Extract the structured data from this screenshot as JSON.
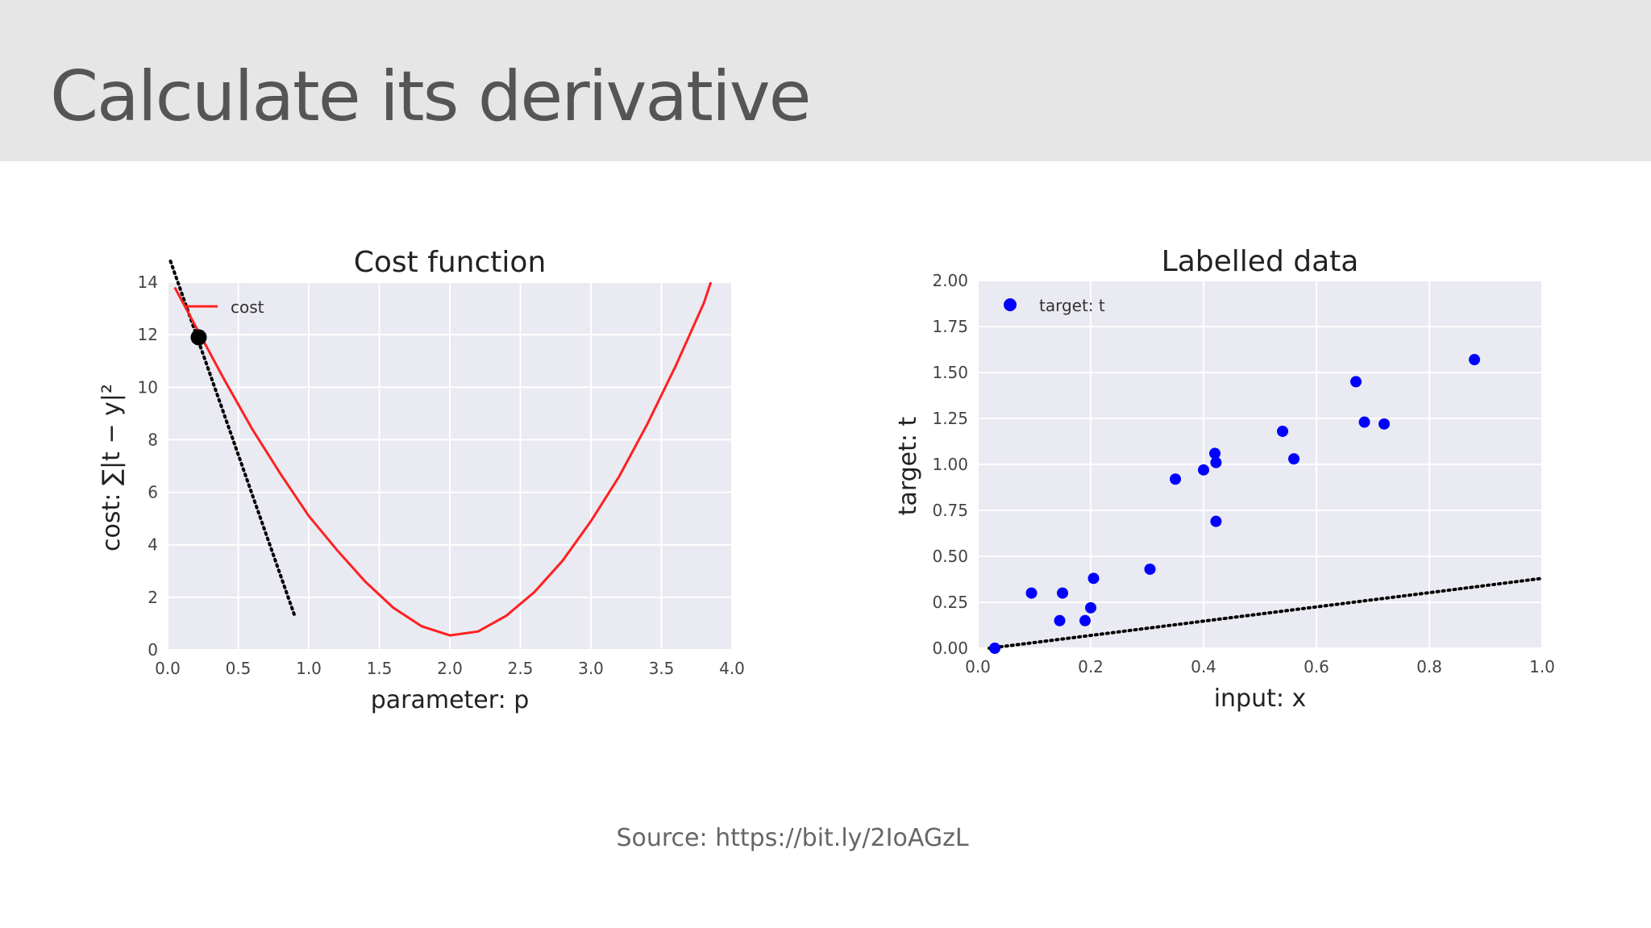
{
  "slide": {
    "title": "Calculate its derivative",
    "source": "Source: https://bit.ly/2IoAGzL"
  },
  "colors": {
    "header_bg": "#e6e6e6",
    "plot_bg": "#eaeaf2",
    "cost_line": "#ff2020",
    "points": "#0000ff",
    "tangent": "#000000"
  },
  "chart_data": [
    {
      "type": "line",
      "title": "Cost function",
      "xlabel": "parameter: p",
      "ylabel": "cost: ∑|t − y|²",
      "xlim": [
        0,
        4
      ],
      "ylim": [
        0,
        14
      ],
      "xticks": [
        "0.0",
        "0.5",
        "1.0",
        "1.5",
        "2.0",
        "2.5",
        "3.0",
        "3.5",
        "4.0"
      ],
      "yticks": [
        "0",
        "2",
        "4",
        "6",
        "8",
        "10",
        "12",
        "14"
      ],
      "grid": true,
      "legend": {
        "position": "top-left",
        "entries": [
          "cost"
        ]
      },
      "series": [
        {
          "name": "cost",
          "style": "solid red line",
          "x": [
            0.05,
            0.2,
            0.4,
            0.6,
            0.8,
            1.0,
            1.2,
            1.4,
            1.6,
            1.8,
            2.0,
            2.2,
            2.4,
            2.6,
            2.8,
            3.0,
            3.2,
            3.4,
            3.6,
            3.8,
            3.85
          ],
          "y": [
            13.8,
            12.3,
            10.3,
            8.4,
            6.7,
            5.1,
            3.8,
            2.6,
            1.6,
            0.9,
            0.55,
            0.7,
            1.3,
            2.2,
            3.4,
            4.9,
            6.6,
            8.6,
            10.8,
            13.2,
            14.0
          ]
        }
      ],
      "marker_point": {
        "x": 0.22,
        "y": 11.9
      },
      "tangent_line": {
        "style": "dotted black",
        "x": [
          0.02,
          0.9
        ],
        "y": [
          14.8,
          1.3
        ]
      }
    },
    {
      "type": "scatter",
      "title": "Labelled data",
      "xlabel": "input: x",
      "ylabel": "target: t",
      "xlim": [
        0,
        1
      ],
      "ylim": [
        0,
        2
      ],
      "xticks": [
        "0.0",
        "0.2",
        "0.4",
        "0.6",
        "0.8",
        "1.0"
      ],
      "yticks": [
        "0.00",
        "0.25",
        "0.50",
        "0.75",
        "1.00",
        "1.25",
        "1.50",
        "1.75",
        "2.00"
      ],
      "grid": true,
      "legend": {
        "position": "top-left",
        "entries": [
          "target: t"
        ]
      },
      "series": [
        {
          "name": "target: t",
          "style": "blue dots",
          "points": [
            [
              0.03,
              0.0
            ],
            [
              0.095,
              0.3
            ],
            [
              0.145,
              0.15
            ],
            [
              0.15,
              0.3
            ],
            [
              0.19,
              0.15
            ],
            [
              0.2,
              0.22
            ],
            [
              0.205,
              0.38
            ],
            [
              0.305,
              0.43
            ],
            [
              0.35,
              0.92
            ],
            [
              0.4,
              0.97
            ],
            [
              0.42,
              1.06
            ],
            [
              0.422,
              1.01
            ],
            [
              0.422,
              0.69
            ],
            [
              0.54,
              1.18
            ],
            [
              0.56,
              1.03
            ],
            [
              0.67,
              1.45
            ],
            [
              0.685,
              1.23
            ],
            [
              0.72,
              1.22
            ],
            [
              0.88,
              1.57
            ]
          ]
        }
      ],
      "fit_line": {
        "style": "dotted black",
        "x": [
          0.02,
          1.0
        ],
        "y": [
          0.0,
          0.38
        ]
      }
    }
  ]
}
